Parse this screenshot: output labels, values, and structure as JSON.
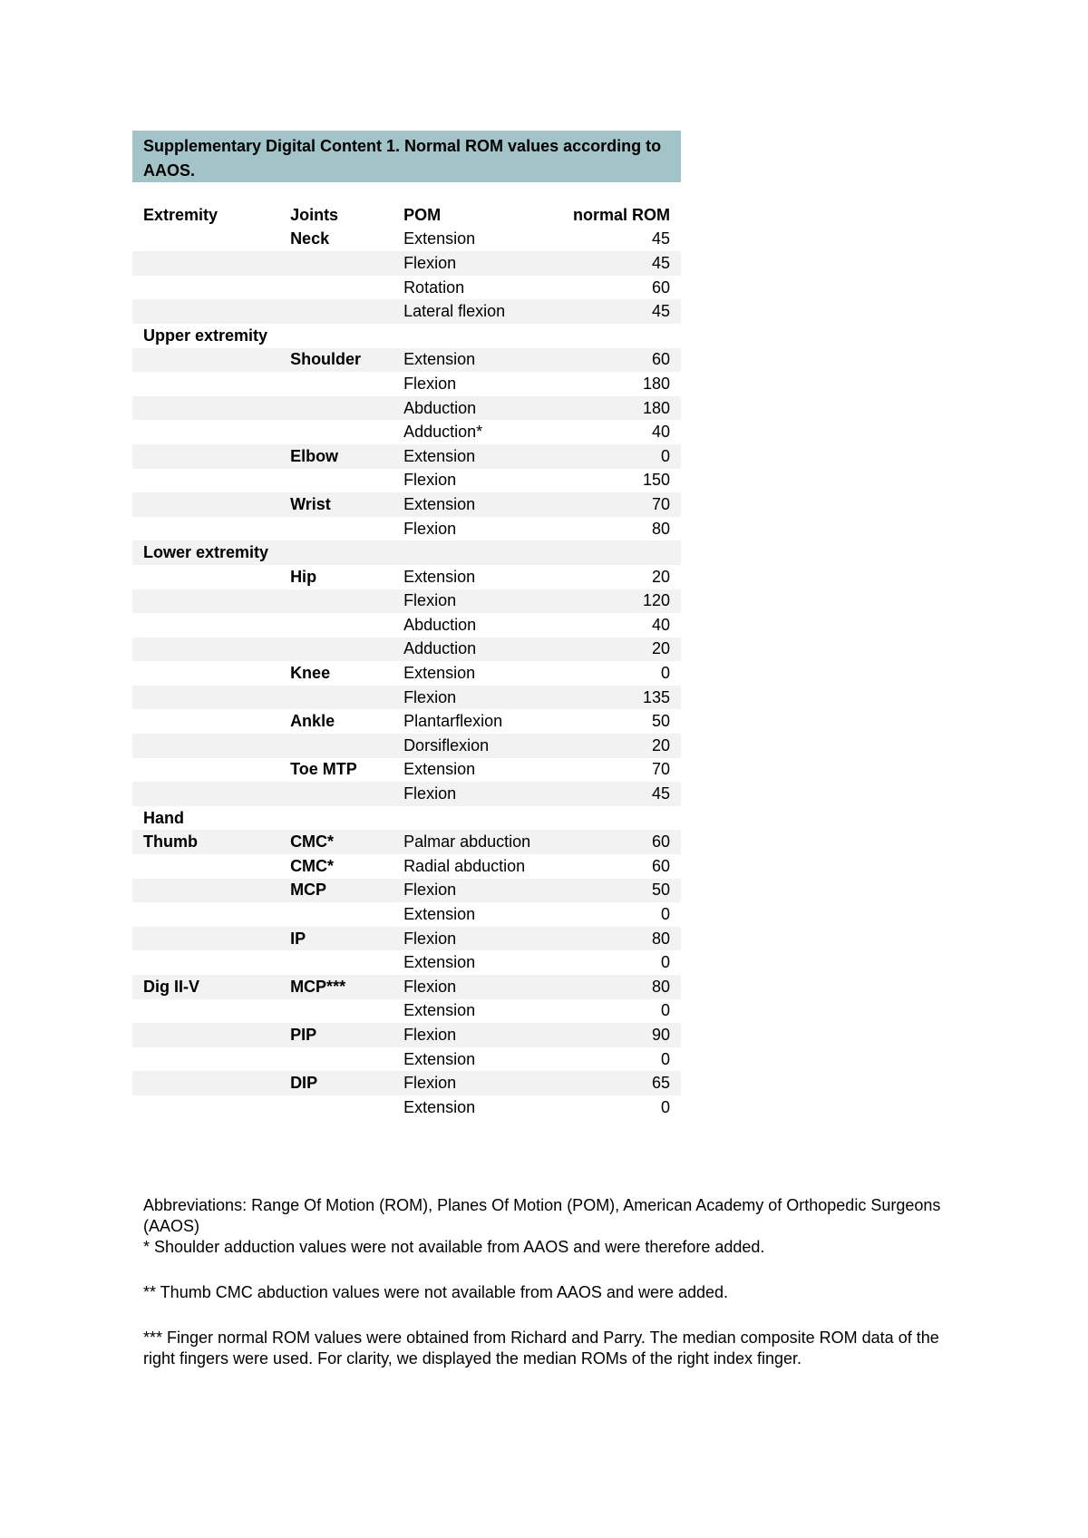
{
  "title": "Supplementary Digital Content 1. Normal ROM values according to AAOS.",
  "table": {
    "header": [
      "Extremity",
      "Joints",
      "POM",
      "normal ROM"
    ],
    "rows": [
      [
        null,
        "Neck",
        "Extension",
        45
      ],
      [
        null,
        null,
        "Flexion",
        45
      ],
      [
        null,
        null,
        "Rotation",
        60
      ],
      [
        null,
        null,
        "Lateral flexion",
        45
      ],
      [
        "Upper extremity",
        null,
        null,
        null
      ],
      [
        null,
        "Shoulder",
        "Extension",
        60
      ],
      [
        null,
        null,
        "Flexion",
        180
      ],
      [
        null,
        null,
        "Abduction",
        180
      ],
      [
        null,
        null,
        "Adduction*",
        40
      ],
      [
        null,
        "Elbow",
        "Extension",
        0
      ],
      [
        null,
        null,
        "Flexion",
        150
      ],
      [
        null,
        "Wrist",
        "Extension",
        70
      ],
      [
        null,
        null,
        "Flexion",
        80
      ],
      [
        "Lower extremity",
        null,
        null,
        null
      ],
      [
        null,
        "Hip",
        "Extension",
        20
      ],
      [
        null,
        null,
        "Flexion",
        120
      ],
      [
        null,
        null,
        "Abduction",
        40
      ],
      [
        null,
        null,
        "Adduction",
        20
      ],
      [
        null,
        "Knee",
        "Extension",
        0
      ],
      [
        null,
        null,
        "Flexion",
        135
      ],
      [
        null,
        "Ankle",
        "Plantarflexion",
        50
      ],
      [
        null,
        null,
        "Dorsiflexion",
        20
      ],
      [
        null,
        "Toe MTP",
        "Extension",
        70
      ],
      [
        null,
        null,
        "Flexion",
        45
      ],
      [
        "Hand",
        null,
        null,
        null
      ],
      [
        "Thumb",
        "CMC*",
        "Palmar abduction",
        60
      ],
      [
        null,
        "CMC*",
        "Radial abduction",
        60
      ],
      [
        null,
        "MCP",
        "Flexion",
        50
      ],
      [
        null,
        null,
        "Extension",
        0
      ],
      [
        null,
        "IP",
        "Flexion",
        80
      ],
      [
        null,
        null,
        "Extension",
        0
      ],
      [
        "Dig II-V",
        "MCP***",
        "Flexion",
        80
      ],
      [
        null,
        null,
        "Extension",
        0
      ],
      [
        null,
        "PIP",
        "Flexion",
        90
      ],
      [
        null,
        null,
        "Extension",
        0
      ],
      [
        null,
        "DIP",
        "Flexion",
        65
      ],
      [
        null,
        null,
        "Extension",
        0
      ]
    ]
  },
  "notes": [
    "Abbreviations: Range Of Motion (ROM), Planes Of Motion (POM), American Academy of Orthopedic Surgeons (AAOS)",
    "* Shoulder adduction values were not available from AAOS and were therefore added.",
    "** Thumb CMC abduction values were not available from AAOS and were added.",
    "*** Finger normal ROM values were obtained from Richard and Parry. The median composite ROM data of the right fingers were used. For clarity, we displayed the median ROMs of the right index finger."
  ]
}
